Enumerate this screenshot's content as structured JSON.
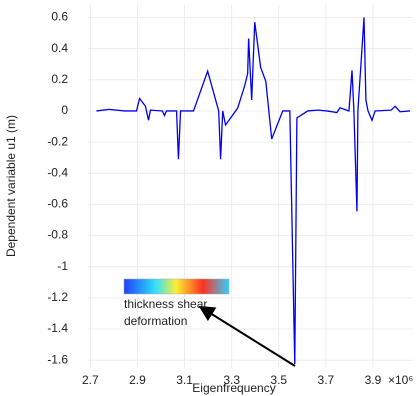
{
  "chart_data": {
    "type": "line",
    "y_label": "Dependent variable u1 (m)",
    "x_label": "Eigenfrequency",
    "x_exponent_label": "×10⁶",
    "annotation_lines": [
      "thickness shear",
      "deformation"
    ],
    "color": "#0000ee",
    "grid": true,
    "xlim": [
      2.69,
      4.07
    ],
    "ylim": [
      -1.65,
      0.68
    ],
    "xticks": [
      2.7,
      2.9,
      3.1,
      3.3,
      3.5,
      3.7,
      3.9
    ],
    "yticks": [
      0.6,
      0.4,
      0.2,
      0,
      -0.2,
      -0.4,
      -0.6,
      -0.8,
      -1,
      -1.2,
      -1.4,
      -1.6
    ],
    "x": [
      2.726,
      2.78,
      2.845,
      2.896,
      2.909,
      2.934,
      2.947,
      2.955,
      3.006,
      3.015,
      3.023,
      3.066,
      3.074,
      3.083,
      3.138,
      3.198,
      3.245,
      3.253,
      3.262,
      3.274,
      3.317,
      3.326,
      3.355,
      3.368,
      3.372,
      3.385,
      3.398,
      3.423,
      3.445,
      3.47,
      3.517,
      3.547,
      3.568,
      3.577,
      3.623,
      3.666,
      3.704,
      3.747,
      3.76,
      3.798,
      3.811,
      3.819,
      3.832,
      3.836,
      3.862,
      3.87,
      3.879,
      3.896,
      3.909,
      3.977,
      3.994,
      4.015,
      4.057
    ],
    "values": [
      0,
      0.01,
      0,
      0,
      0.08,
      0.03,
      -0.06,
      0.005,
      0,
      -0.03,
      0,
      0,
      -0.31,
      0,
      0,
      0.255,
      0,
      -0.31,
      0,
      -0.09,
      0,
      0.02,
      0.16,
      0.24,
      0.465,
      0.07,
      0.57,
      0.28,
      0.19,
      -0.18,
      0,
      0,
      -1.625,
      -0.045,
      0,
      0.005,
      0,
      -0.01,
      0.02,
      0,
      0.26,
      0,
      -0.645,
      0,
      0.6,
      0.07,
      0,
      -0.06,
      0,
      0.005,
      0.03,
      -0.005,
      0
    ]
  }
}
